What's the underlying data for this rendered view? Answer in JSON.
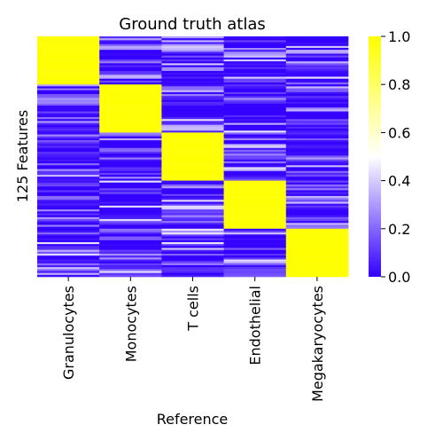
{
  "chart_data": {
    "type": "heatmap",
    "title": "Ground truth atlas",
    "xlabel": "Reference",
    "ylabel": "125 Features",
    "categories": [
      "Granulocytes",
      "Monocytes",
      "T cells",
      "Endothelial",
      "Megakaryocytes"
    ],
    "n_features": 125,
    "features_per_block": 25,
    "block_value": 1.0,
    "background_value_range": [
      0.0,
      0.45
    ],
    "colorbar": {
      "range": [
        0.0,
        1.0
      ],
      "ticks": [
        "0.0",
        "0.2",
        "0.4",
        "0.6",
        "0.8",
        "1.0"
      ],
      "colors": [
        "#3300ff",
        "#ffffff",
        "#ffff00"
      ]
    },
    "grid": false,
    "legend": "colorbar-right"
  }
}
